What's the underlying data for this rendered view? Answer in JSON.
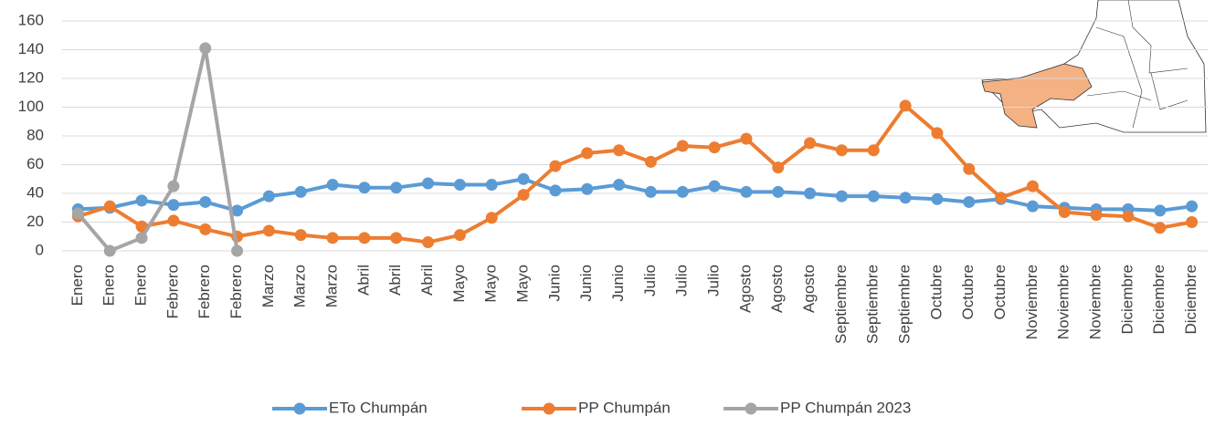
{
  "chart_data": {
    "type": "line",
    "categories": [
      "Enero",
      "Enero",
      "Enero",
      "Febrero",
      "Febrero",
      "Febrero",
      "Marzo",
      "Marzo",
      "Marzo",
      "Abril",
      "Abril",
      "Abril",
      "Mayo",
      "Mayo",
      "Mayo",
      "Junio",
      "Junio",
      "Junio",
      "Julio",
      "Julio",
      "Julio",
      "Agosto",
      "Agosto",
      "Agosto",
      "Septiembre",
      "Septiembre",
      "Septiembre",
      "Octubre",
      "Octubre",
      "Octubre",
      "Noviembre",
      "Noviembre",
      "Noviembre",
      "Diciembre",
      "Diciembre",
      "Diciembre"
    ],
    "series": [
      {
        "name": "ETo Chumpán",
        "color": "#5b9bd5",
        "values": [
          29,
          30,
          35,
          32,
          34,
          28,
          38,
          41,
          46,
          44,
          44,
          47,
          46,
          46,
          50,
          42,
          43,
          46,
          41,
          41,
          45,
          41,
          41,
          40,
          38,
          38,
          37,
          36,
          34,
          36,
          31,
          30,
          29,
          29,
          28,
          31
        ]
      },
      {
        "name": "PP Chumpán",
        "color": "#ed7d31",
        "values": [
          24,
          31,
          17,
          21,
          15,
          10,
          14,
          11,
          9,
          9,
          9,
          6,
          11,
          23,
          39,
          59,
          68,
          70,
          62,
          73,
          72,
          78,
          58,
          75,
          70,
          70,
          101,
          82,
          57,
          37,
          45,
          27,
          25,
          24,
          16,
          20
        ]
      },
      {
        "name": "PP Chumpán 2023",
        "color": "#a5a5a5",
        "values": [
          26,
          0,
          9,
          45,
          141,
          0,
          null,
          null,
          null,
          null,
          null,
          null,
          null,
          null,
          null,
          null,
          null,
          null,
          null,
          null,
          null,
          null,
          null,
          null,
          null,
          null,
          null,
          null,
          null,
          null,
          null,
          null,
          null,
          null,
          null,
          null
        ]
      }
    ],
    "ylim": [
      0,
      160
    ],
    "yticks": [
      0,
      20,
      40,
      60,
      80,
      100,
      120,
      140,
      160
    ],
    "grid": true,
    "legend": "bottom"
  }
}
